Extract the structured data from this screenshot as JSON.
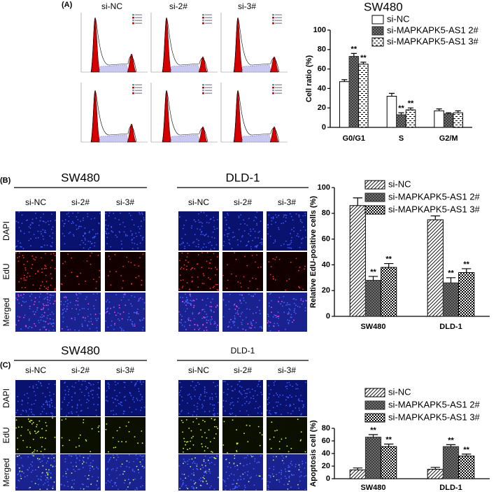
{
  "panel_labels": [
    "(A)",
    "(B)",
    "(C)"
  ],
  "flow_labels": [
    "si-NC",
    "si-2#",
    "si-3#"
  ],
  "panel_b": {
    "groups": [
      {
        "name": "SW480",
        "conditions": [
          "si-NC",
          "si-2#",
          "si-3#"
        ]
      },
      {
        "name": "DLD-1",
        "conditions": [
          "si-NC",
          "si-2#",
          "si-3#"
        ]
      }
    ],
    "rows": [
      "DAPI",
      "EdU",
      "Merged"
    ]
  },
  "panel_c": {
    "groups": [
      {
        "name": "SW480",
        "conditions": [
          "si-NC",
          "si-2#",
          "si-3#"
        ]
      },
      {
        "name": "DLD-1",
        "conditions": [
          "si-NC",
          "si-2#",
          "si-3#"
        ]
      }
    ],
    "rows": [
      "DAPI",
      "EdU",
      "Merged"
    ]
  },
  "chart_data": [
    {
      "type": "bar",
      "title": "SW480",
      "y_label": "Cell ratio (%)",
      "categories": [
        "G0/G1",
        "S",
        "G2/M"
      ],
      "series": [
        {
          "name": "si-NC",
          "color": "#000000",
          "pattern": "none",
          "values": [
            47,
            32,
            17
          ],
          "errors": [
            2,
            3,
            2
          ],
          "annotations": [
            null,
            null,
            null
          ]
        },
        {
          "name": "si-MAPKAPK5-AS1  2#",
          "color": "#333333",
          "pattern": "crosshatch",
          "values": [
            73,
            13,
            14
          ],
          "errors": [
            3,
            2,
            1
          ],
          "annotations": [
            "**",
            "**",
            null
          ]
        },
        {
          "name": "si-MAPKAPK5-AS1  3#",
          "color": "#000000",
          "pattern": "dashes",
          "values": [
            65,
            18,
            15
          ],
          "errors": [
            2,
            2,
            2
          ],
          "annotations": [
            "**",
            "**",
            null
          ]
        }
      ],
      "ylim": [
        0,
        100
      ],
      "yticks": [
        0,
        20,
        40,
        60,
        80,
        100
      ],
      "legend": "top-right"
    },
    {
      "type": "bar",
      "y_label": "Relative EdU-positive cells (%)",
      "categories": [
        "SW480",
        "DLD-1"
      ],
      "series": [
        {
          "name": "si-NC",
          "color": "#000000",
          "pattern": "diagonal",
          "values": [
            86,
            75
          ],
          "errors": [
            6,
            3
          ],
          "annotations": [
            null,
            null
          ]
        },
        {
          "name": "si-MAPKAPK5-AS1 2#",
          "color": "#333333",
          "pattern": "crosshatch",
          "values": [
            28,
            26
          ],
          "errors": [
            3,
            4
          ],
          "annotations": [
            "**",
            "**"
          ]
        },
        {
          "name": "si-MAPKAPK5-AS1 3#",
          "color": "#000000",
          "pattern": "checker",
          "values": [
            38,
            34
          ],
          "errors": [
            3,
            3
          ],
          "annotations": [
            "**",
            "**"
          ]
        }
      ],
      "ylim": [
        0,
        100
      ],
      "yticks": [
        0,
        20,
        40,
        60,
        80,
        100
      ],
      "legend": "top-right"
    },
    {
      "type": "bar",
      "y_label": "Apoptosis cell (%)",
      "categories": [
        "SW480",
        "DLD-1"
      ],
      "series": [
        {
          "name": "si-NC",
          "color": "#000000",
          "pattern": "diagonal",
          "values": [
            14,
            15
          ],
          "errors": [
            3,
            3
          ],
          "annotations": [
            null,
            null
          ]
        },
        {
          "name": "si-MAPKAPK5-AS1 2#",
          "color": "#333333",
          "pattern": "crosshatch",
          "values": [
            66,
            51
          ],
          "errors": [
            4,
            3
          ],
          "annotations": [
            "**",
            "**"
          ]
        },
        {
          "name": "si-MAPKAPK5-AS1 3#",
          "color": "#000000",
          "pattern": "checker",
          "values": [
            51,
            36
          ],
          "errors": [
            4,
            3
          ],
          "annotations": [
            "**",
            "**"
          ]
        }
      ],
      "ylim": [
        0,
        80
      ],
      "yticks": [
        0,
        20,
        40,
        60,
        80
      ],
      "legend": "top-right"
    }
  ]
}
